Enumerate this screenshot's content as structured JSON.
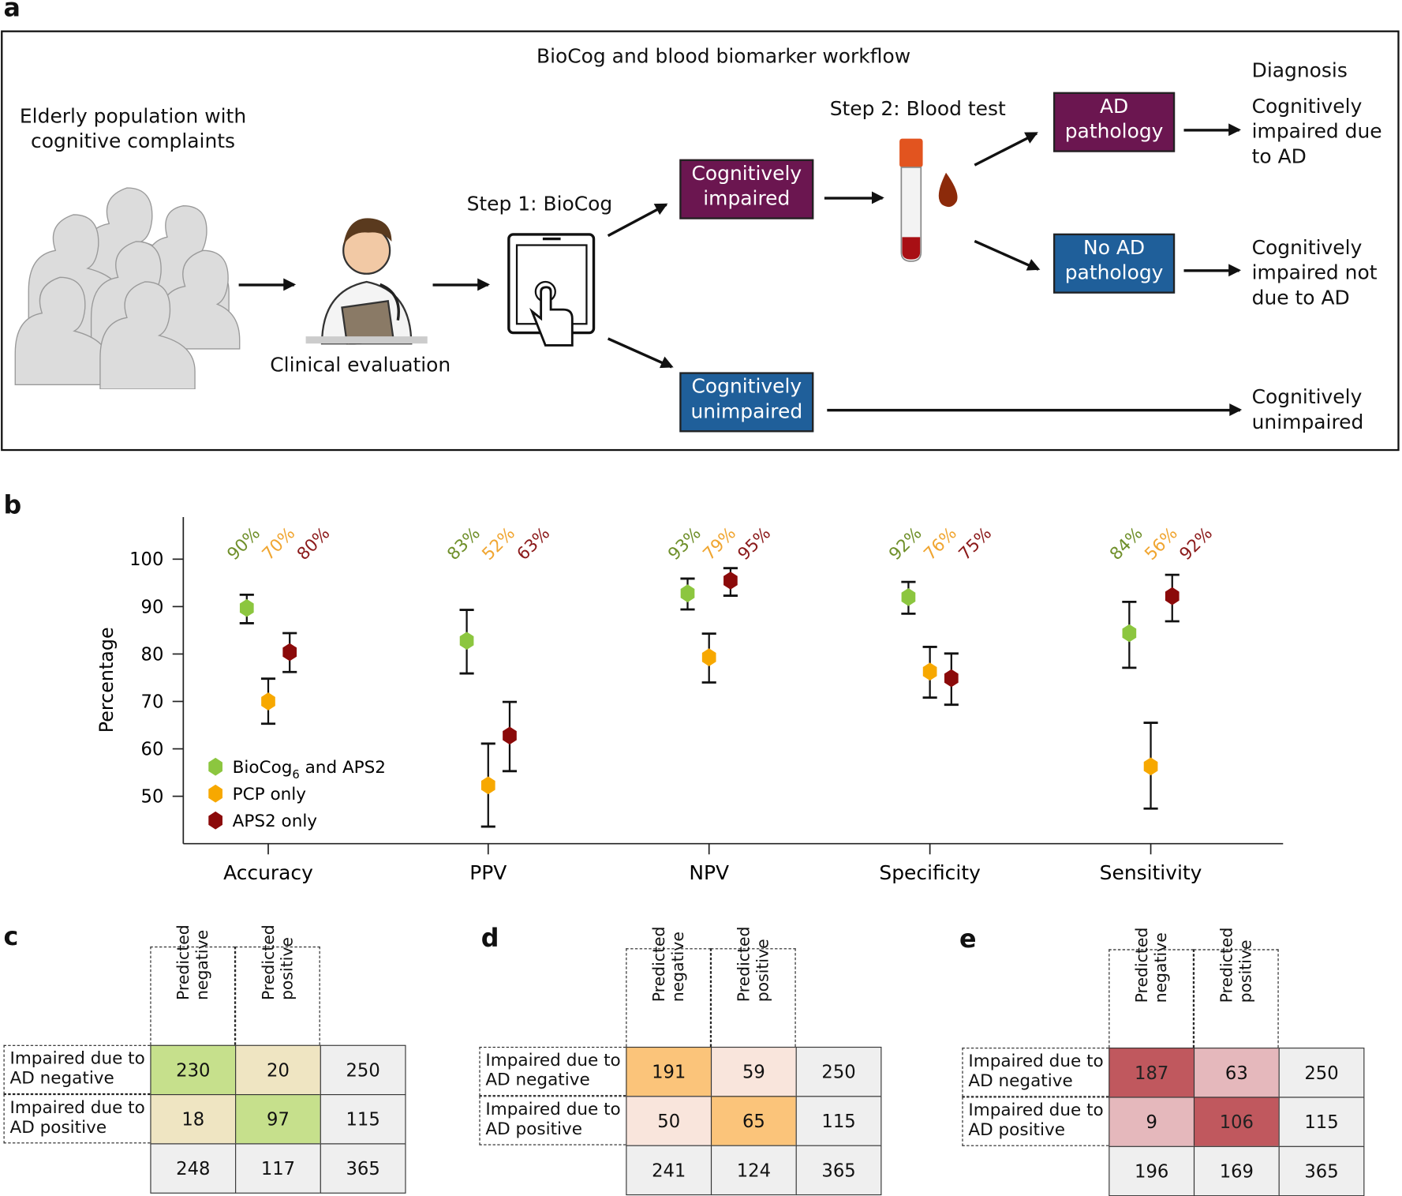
{
  "panel_labels": {
    "a": "a",
    "b": "b",
    "c": "c",
    "d": "d",
    "e": "e"
  },
  "workflow": {
    "title": "BioCog and blood biomarker workflow",
    "population": "Elderly population with\ncognitive complaints",
    "clinical_evaluation": "Clinical evaluation",
    "step1": "Step 1: BioCog",
    "step2": "Step 2: Blood test",
    "cog_impaired": "Cognitively\nimpaired",
    "cog_unimpaired": "Cognitively\nunimpaired",
    "ad_pathology": "AD\npathology",
    "no_ad_pathology": "No AD\npathology",
    "diagnosis_header": "Diagnosis",
    "diag_ad": "Cognitively\nimpaired due\nto AD",
    "diag_not_ad": "Cognitively\nimpaired not\ndue to AD",
    "diag_unimpaired": "Cognitively\nunimpaired",
    "colors": {
      "purple": "#6b1650",
      "blue": "#1f5f9a"
    }
  },
  "chart_data": {
    "type": "scatter",
    "ylabel": "Percentage",
    "ylim": [
      43,
      110
    ],
    "yticks": [
      50,
      60,
      70,
      80,
      90,
      100
    ],
    "categories": [
      "Accuracy",
      "PPV",
      "NPV",
      "Specificity",
      "Sensitivity"
    ],
    "legend_position": "bottom-left",
    "series": [
      {
        "name": "BioCog",
        "name_sub": "6",
        "name_rest": " and APS2",
        "color": "#8cc63f",
        "label_color": "#6f8f2a",
        "values": [
          89.7,
          82.8,
          92.8,
          92.0,
          84.4
        ],
        "ci_low": [
          86.5,
          75.9,
          89.4,
          88.5,
          77.1
        ],
        "ci_high": [
          92.5,
          89.3,
          95.9,
          95.2,
          91.0
        ],
        "labels": [
          "90%",
          "83%",
          "93%",
          "92%",
          "84%"
        ]
      },
      {
        "name": "PCP only",
        "color": "#f7a800",
        "label_color": "#f0a530",
        "values": [
          70.0,
          52.3,
          79.3,
          76.3,
          56.3
        ],
        "ci_low": [
          65.3,
          43.6,
          74.0,
          70.8,
          47.4
        ],
        "ci_high": [
          74.8,
          61.1,
          84.3,
          81.5,
          65.5
        ],
        "labels": [
          "70%",
          "52%",
          "79%",
          "76%",
          "56%"
        ]
      },
      {
        "name": "APS2 only",
        "color": "#8b0a0a",
        "label_color": "#8b1a1a",
        "values": [
          80.4,
          62.8,
          95.5,
          74.9,
          92.2
        ],
        "ci_low": [
          76.2,
          55.3,
          92.3,
          69.3,
          86.9
        ],
        "ci_high": [
          84.4,
          69.9,
          98.1,
          80.1,
          96.7
        ],
        "labels": [
          "80%",
          "63%",
          "95%",
          "75%",
          "92%"
        ]
      }
    ]
  },
  "matrices": [
    {
      "label": "c",
      "col_headers": [
        "Predicted\nnegative",
        "Predicted\npositive"
      ],
      "row_headers": [
        "Impaired due to\nAD negative",
        "Impaired due to\nAD positive"
      ],
      "cells": [
        [
          "230",
          "20",
          "250"
        ],
        [
          "18",
          "97",
          "115"
        ],
        [
          "248",
          "117",
          "365"
        ]
      ],
      "diag_color": "#c6e08c",
      "off_color": "#efe5c2"
    },
    {
      "label": "d",
      "col_headers": [
        "Predicted\nnegative",
        "Predicted\npositive"
      ],
      "row_headers": [
        "Impaired due to\nAD negative",
        "Impaired due to\nAD positive"
      ],
      "cells": [
        [
          "191",
          "59",
          "250"
        ],
        [
          "50",
          "65",
          "115"
        ],
        [
          "241",
          "124",
          "365"
        ]
      ],
      "diag_color": "#fbc47a",
      "off_color": "#f9e5dc"
    },
    {
      "label": "e",
      "col_headers": [
        "Predicted\nnegative",
        "Predicted\npositive"
      ],
      "row_headers": [
        "Impaired due to\nAD negative",
        "Impaired due to\nAD positive"
      ],
      "cells": [
        [
          "187",
          "63",
          "250"
        ],
        [
          "9",
          "106",
          "115"
        ],
        [
          "196",
          "169",
          "365"
        ]
      ],
      "diag_color": "#c0585e",
      "off_color": "#e5b8bc"
    }
  ]
}
